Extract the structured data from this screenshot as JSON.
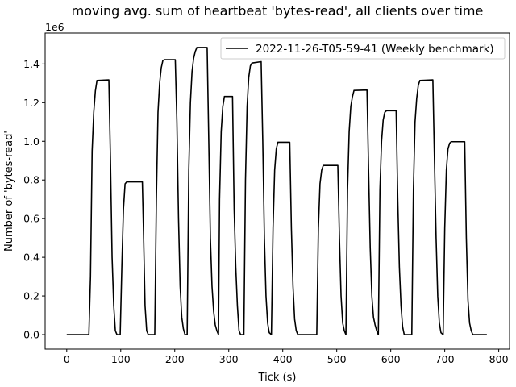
{
  "chart_data": {
    "type": "line",
    "title": "moving avg. sum of heartbeat 'bytes-read', all clients over time",
    "xlabel": "Tick (s)",
    "ylabel": "Number of 'bytes-read'",
    "y_offset_label": "1e6",
    "xlim": [
      -40,
      820
    ],
    "ylim": [
      -75000,
      1560000
    ],
    "xticks": [
      0,
      100,
      200,
      300,
      400,
      500,
      600,
      700,
      800
    ],
    "xtick_labels": [
      "0",
      "100",
      "200",
      "300",
      "400",
      "500",
      "600",
      "700",
      "800"
    ],
    "yticks": [
      0,
      200000,
      400000,
      600000,
      800000,
      1000000,
      1200000,
      1400000
    ],
    "ytick_labels": [
      "0.0",
      "0.2",
      "0.4",
      "0.6",
      "0.8",
      "1.0",
      "1.2",
      "1.4"
    ],
    "legend_position": "top-right",
    "grid": false,
    "series": [
      {
        "name": "2022-11-26-T05-59-41 (Weekly benchmark)",
        "color": "#000000",
        "points": [
          [
            0,
            0
          ],
          [
            41,
            0
          ],
          [
            44,
            300000
          ],
          [
            47,
            950000
          ],
          [
            50,
            1150000
          ],
          [
            53,
            1260000
          ],
          [
            56,
            1315000
          ],
          [
            78,
            1318000
          ],
          [
            81,
            900000
          ],
          [
            84,
            400000
          ],
          [
            87,
            150000
          ],
          [
            90,
            20000
          ],
          [
            93,
            0
          ],
          [
            99,
            0
          ],
          [
            102,
            350000
          ],
          [
            105,
            650000
          ],
          [
            108,
            780000
          ],
          [
            111,
            790000
          ],
          [
            140,
            790000
          ],
          [
            142,
            550000
          ],
          [
            145,
            150000
          ],
          [
            148,
            20000
          ],
          [
            151,
            0
          ],
          [
            163,
            0
          ],
          [
            166,
            700000
          ],
          [
            169,
            1150000
          ],
          [
            172,
            1300000
          ],
          [
            175,
            1380000
          ],
          [
            178,
            1418000
          ],
          [
            181,
            1422000
          ],
          [
            201,
            1422000
          ],
          [
            204,
            1100000
          ],
          [
            207,
            600000
          ],
          [
            210,
            250000
          ],
          [
            213,
            90000
          ],
          [
            216,
            30000
          ],
          [
            219,
            0
          ],
          [
            223,
            0
          ],
          [
            226,
            850000
          ],
          [
            229,
            1200000
          ],
          [
            232,
            1360000
          ],
          [
            235,
            1430000
          ],
          [
            238,
            1465000
          ],
          [
            241,
            1485000
          ],
          [
            260,
            1485000
          ],
          [
            263,
            1000000
          ],
          [
            266,
            500000
          ],
          [
            269,
            250000
          ],
          [
            272,
            120000
          ],
          [
            275,
            50000
          ],
          [
            278,
            20000
          ],
          [
            281,
            0
          ],
          [
            283,
            700000
          ],
          [
            286,
            1050000
          ],
          [
            289,
            1180000
          ],
          [
            292,
            1232000
          ],
          [
            307,
            1232000
          ],
          [
            310,
            650000
          ],
          [
            313,
            350000
          ],
          [
            316,
            150000
          ],
          [
            319,
            20000
          ],
          [
            322,
            0
          ],
          [
            328,
            0
          ],
          [
            331,
            800000
          ],
          [
            334,
            1180000
          ],
          [
            337,
            1330000
          ],
          [
            340,
            1390000
          ],
          [
            343,
            1405000
          ],
          [
            360,
            1412000
          ],
          [
            363,
            1000000
          ],
          [
            366,
            500000
          ],
          [
            369,
            200000
          ],
          [
            372,
            60000
          ],
          [
            375,
            10000
          ],
          [
            379,
            0
          ],
          [
            382,
            550000
          ],
          [
            385,
            850000
          ],
          [
            388,
            960000
          ],
          [
            391,
            995000
          ],
          [
            413,
            995000
          ],
          [
            416,
            550000
          ],
          [
            419,
            250000
          ],
          [
            422,
            80000
          ],
          [
            425,
            20000
          ],
          [
            428,
            0
          ],
          [
            463,
            0
          ],
          [
            466,
            550000
          ],
          [
            469,
            780000
          ],
          [
            472,
            850000
          ],
          [
            475,
            875000
          ],
          [
            502,
            875000
          ],
          [
            505,
            500000
          ],
          [
            508,
            200000
          ],
          [
            511,
            60000
          ],
          [
            514,
            20000
          ],
          [
            517,
            0
          ],
          [
            520,
            750000
          ],
          [
            523,
            1050000
          ],
          [
            526,
            1180000
          ],
          [
            529,
            1230000
          ],
          [
            532,
            1263000
          ],
          [
            556,
            1265000
          ],
          [
            559,
            850000
          ],
          [
            562,
            450000
          ],
          [
            565,
            200000
          ],
          [
            568,
            90000
          ],
          [
            571,
            50000
          ],
          [
            574,
            20000
          ],
          [
            577,
            0
          ],
          [
            580,
            750000
          ],
          [
            583,
            1000000
          ],
          [
            586,
            1110000
          ],
          [
            589,
            1150000
          ],
          [
            592,
            1158000
          ],
          [
            610,
            1158000
          ],
          [
            613,
            700000
          ],
          [
            616,
            350000
          ],
          [
            619,
            150000
          ],
          [
            622,
            40000
          ],
          [
            625,
            0
          ],
          [
            639,
            0
          ],
          [
            642,
            750000
          ],
          [
            645,
            1100000
          ],
          [
            648,
            1220000
          ],
          [
            651,
            1290000
          ],
          [
            654,
            1315000
          ],
          [
            678,
            1318000
          ],
          [
            681,
            900000
          ],
          [
            684,
            500000
          ],
          [
            687,
            200000
          ],
          [
            690,
            60000
          ],
          [
            693,
            10000
          ],
          [
            697,
            0
          ],
          [
            700,
            550000
          ],
          [
            703,
            850000
          ],
          [
            706,
            960000
          ],
          [
            709,
            990000
          ],
          [
            712,
            998000
          ],
          [
            737,
            998000
          ],
          [
            740,
            500000
          ],
          [
            743,
            180000
          ],
          [
            746,
            60000
          ],
          [
            749,
            20000
          ],
          [
            752,
            0
          ],
          [
            778,
            0
          ]
        ]
      }
    ]
  }
}
